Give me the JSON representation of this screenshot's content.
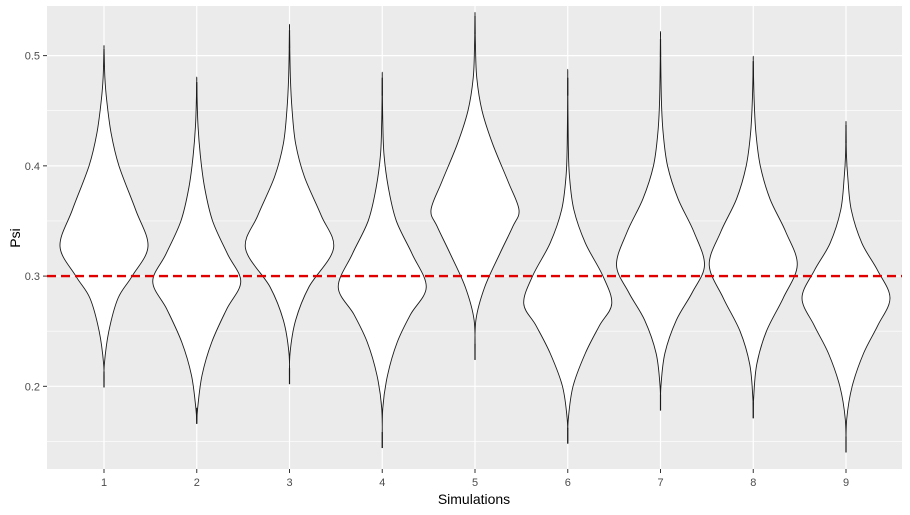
{
  "chart_data": {
    "type": "violin",
    "xlabel": "Simulations",
    "ylabel": "Psi",
    "categories": [
      "1",
      "2",
      "3",
      "4",
      "5",
      "6",
      "7",
      "8",
      "9"
    ],
    "ylim": [
      0.125,
      0.545
    ],
    "y_ticks": [
      0.2,
      0.3,
      0.4,
      0.5
    ],
    "y_tick_labels": [
      "0.2",
      "0.3",
      "0.4",
      "0.5"
    ],
    "grid": true,
    "reference_line": {
      "y": 0.3,
      "color": "#e00000",
      "style": "dashed"
    },
    "series": [
      {
        "category": "1",
        "min": 0.199,
        "max": 0.506,
        "mode": 0.327,
        "profile": [
          [
            0.199,
            0
          ],
          [
            0.22,
            0.004
          ],
          [
            0.25,
            0.055
          ],
          [
            0.28,
            0.16
          ],
          [
            0.3,
            0.32
          ],
          [
            0.327,
            0.5
          ],
          [
            0.36,
            0.36
          ],
          [
            0.4,
            0.17
          ],
          [
            0.43,
            0.08
          ],
          [
            0.46,
            0.03
          ],
          [
            0.48,
            0.01
          ],
          [
            0.506,
            0
          ]
        ]
      },
      {
        "category": "2",
        "min": 0.166,
        "max": 0.476,
        "mode": 0.295,
        "profile": [
          [
            0.166,
            0
          ],
          [
            0.18,
            0.01
          ],
          [
            0.21,
            0.06
          ],
          [
            0.24,
            0.17
          ],
          [
            0.27,
            0.34
          ],
          [
            0.295,
            0.5
          ],
          [
            0.32,
            0.35
          ],
          [
            0.35,
            0.18
          ],
          [
            0.38,
            0.09
          ],
          [
            0.41,
            0.04
          ],
          [
            0.44,
            0.012
          ],
          [
            0.476,
            0
          ]
        ]
      },
      {
        "category": "3",
        "min": 0.202,
        "max": 0.523,
        "mode": 0.325,
        "profile": [
          [
            0.202,
            0
          ],
          [
            0.23,
            0.006
          ],
          [
            0.26,
            0.07
          ],
          [
            0.29,
            0.22
          ],
          [
            0.325,
            0.5
          ],
          [
            0.355,
            0.36
          ],
          [
            0.39,
            0.17
          ],
          [
            0.42,
            0.07
          ],
          [
            0.45,
            0.03
          ],
          [
            0.48,
            0.01
          ],
          [
            0.523,
            0
          ]
        ]
      },
      {
        "category": "4",
        "min": 0.144,
        "max": 0.48,
        "mode": 0.29,
        "profile": [
          [
            0.144,
            0
          ],
          [
            0.18,
            0.006
          ],
          [
            0.21,
            0.06
          ],
          [
            0.24,
            0.17
          ],
          [
            0.265,
            0.32
          ],
          [
            0.29,
            0.5
          ],
          [
            0.32,
            0.34
          ],
          [
            0.35,
            0.16
          ],
          [
            0.38,
            0.07
          ],
          [
            0.41,
            0.02
          ],
          [
            0.44,
            0.006
          ],
          [
            0.48,
            0
          ]
        ]
      },
      {
        "category": "5",
        "min": 0.224,
        "max": 0.536,
        "mode": 0.36,
        "profile": [
          [
            0.224,
            0
          ],
          [
            0.26,
            0.01
          ],
          [
            0.29,
            0.11
          ],
          [
            0.32,
            0.28
          ],
          [
            0.345,
            0.43
          ],
          [
            0.36,
            0.5
          ],
          [
            0.385,
            0.38
          ],
          [
            0.42,
            0.2
          ],
          [
            0.45,
            0.08
          ],
          [
            0.48,
            0.02
          ],
          [
            0.51,
            0.005
          ],
          [
            0.536,
            0
          ]
        ]
      },
      {
        "category": "6",
        "min": 0.148,
        "max": 0.48,
        "mode": 0.275,
        "profile": [
          [
            0.148,
            0
          ],
          [
            0.17,
            0.006
          ],
          [
            0.2,
            0.06
          ],
          [
            0.23,
            0.2
          ],
          [
            0.255,
            0.36
          ],
          [
            0.275,
            0.5
          ],
          [
            0.3,
            0.4
          ],
          [
            0.33,
            0.2
          ],
          [
            0.36,
            0.07
          ],
          [
            0.39,
            0.02
          ],
          [
            0.42,
            0.006
          ],
          [
            0.48,
            0
          ]
        ]
      },
      {
        "category": "7",
        "min": 0.178,
        "max": 0.515,
        "mode": 0.31,
        "profile": [
          [
            0.178,
            0
          ],
          [
            0.2,
            0.005
          ],
          [
            0.23,
            0.05
          ],
          [
            0.26,
            0.18
          ],
          [
            0.285,
            0.36
          ],
          [
            0.31,
            0.5
          ],
          [
            0.34,
            0.38
          ],
          [
            0.37,
            0.2
          ],
          [
            0.4,
            0.08
          ],
          [
            0.43,
            0.03
          ],
          [
            0.46,
            0.01
          ],
          [
            0.515,
            0
          ]
        ]
      },
      {
        "category": "8",
        "min": 0.171,
        "max": 0.495,
        "mode": 0.31,
        "profile": [
          [
            0.171,
            0
          ],
          [
            0.19,
            0.005
          ],
          [
            0.22,
            0.04
          ],
          [
            0.25,
            0.15
          ],
          [
            0.28,
            0.34
          ],
          [
            0.31,
            0.5
          ],
          [
            0.34,
            0.37
          ],
          [
            0.37,
            0.19
          ],
          [
            0.4,
            0.08
          ],
          [
            0.43,
            0.03
          ],
          [
            0.46,
            0.01
          ],
          [
            0.495,
            0
          ]
        ]
      },
      {
        "category": "9",
        "min": 0.14,
        "max": 0.437,
        "mode": 0.28,
        "profile": [
          [
            0.14,
            0
          ],
          [
            0.17,
            0.008
          ],
          [
            0.2,
            0.07
          ],
          [
            0.23,
            0.2
          ],
          [
            0.255,
            0.36
          ],
          [
            0.28,
            0.5
          ],
          [
            0.305,
            0.36
          ],
          [
            0.33,
            0.18
          ],
          [
            0.36,
            0.06
          ],
          [
            0.39,
            0.02
          ],
          [
            0.41,
            0.005
          ],
          [
            0.437,
            0
          ]
        ]
      }
    ]
  }
}
